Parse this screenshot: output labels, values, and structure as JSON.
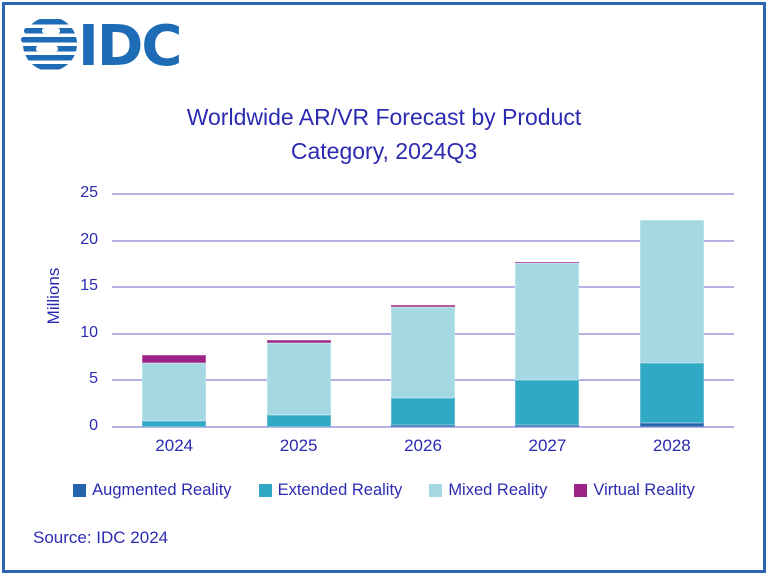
{
  "header": {
    "logo_text": "IDC"
  },
  "title": {
    "line1": "Worldwide AR/VR Forecast by Product",
    "line2": "Category, 2024Q3"
  },
  "source": "Source: IDC 2024",
  "colors": {
    "text_blue": "#2b2bb2",
    "frame_border": "#2b65b0",
    "logo_blue": "#1e6cb5",
    "gridline": "#b3b3e8",
    "augmented_reality": "#2565ae",
    "extended_reality": "#31a9c4",
    "mixed_reality": "#a4d8e2",
    "virtual_reality": "#9c2487"
  },
  "chart_data": {
    "type": "bar",
    "stacked": true,
    "title": "Worldwide AR/VR Forecast by Product Category, 2024Q3",
    "categories": [
      "2024",
      "2025",
      "2026",
      "2027",
      "2028"
    ],
    "series": [
      {
        "name": "Augmented Reality",
        "color": "#2565ae",
        "values": [
          0.0,
          0.0,
          0.2,
          0.2,
          0.4
        ]
      },
      {
        "name": "Extended Reality",
        "color": "#31a9c4",
        "values": [
          0.6,
          1.3,
          2.9,
          4.8,
          6.5
        ]
      },
      {
        "name": "Mixed Reality",
        "color": "#a4d8e2",
        "values": [
          6.3,
          7.7,
          9.8,
          12.6,
          15.3
        ]
      },
      {
        "name": "Virtual Reality",
        "color": "#9c2487",
        "values": [
          0.8,
          0.3,
          0.2,
          0.1,
          0.0
        ]
      }
    ],
    "totals": [
      7.7,
      9.3,
      13.1,
      17.7,
      22.2
    ],
    "xlabel": "",
    "ylabel": "Millions",
    "ylim": [
      0,
      25
    ],
    "yticks": [
      0,
      5,
      10,
      15,
      20,
      25
    ],
    "grid": true,
    "legend_position": "bottom"
  }
}
